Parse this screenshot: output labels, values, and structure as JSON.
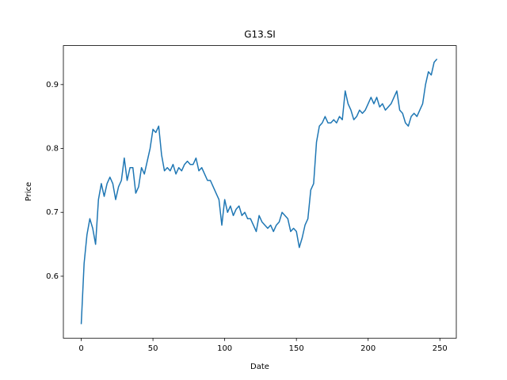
{
  "chart_data": {
    "type": "line",
    "title": "G13.SI",
    "x_label": "Date",
    "y_label": "Price",
    "x": [
      0,
      2,
      4,
      6,
      8,
      10,
      12,
      14,
      16,
      18,
      20,
      22,
      24,
      26,
      28,
      30,
      32,
      34,
      36,
      38,
      40,
      42,
      44,
      46,
      48,
      50,
      52,
      54,
      56,
      58,
      60,
      62,
      64,
      66,
      68,
      70,
      72,
      74,
      76,
      78,
      80,
      82,
      84,
      86,
      88,
      90,
      92,
      94,
      96,
      98,
      100,
      102,
      104,
      106,
      108,
      110,
      112,
      114,
      116,
      118,
      120,
      122,
      124,
      126,
      128,
      130,
      132,
      134,
      136,
      138,
      140,
      142,
      144,
      146,
      148,
      150,
      152,
      154,
      156,
      158,
      160,
      162,
      164,
      166,
      168,
      170,
      172,
      174,
      176,
      178,
      180,
      182,
      184,
      186,
      188,
      190,
      192,
      194,
      196,
      198,
      200,
      202,
      204,
      206,
      208,
      210,
      212,
      214,
      216,
      218,
      220,
      222,
      224,
      226,
      228,
      230,
      232,
      234,
      236,
      238,
      240,
      242,
      244,
      246,
      248
    ],
    "series": [
      {
        "name": "G13.SI",
        "color": "#1f77b4",
        "values": [
          0.525,
          0.62,
          0.665,
          0.69,
          0.675,
          0.65,
          0.72,
          0.745,
          0.725,
          0.745,
          0.755,
          0.745,
          0.72,
          0.74,
          0.75,
          0.785,
          0.75,
          0.77,
          0.77,
          0.73,
          0.74,
          0.77,
          0.76,
          0.78,
          0.8,
          0.83,
          0.825,
          0.835,
          0.79,
          0.765,
          0.77,
          0.765,
          0.775,
          0.76,
          0.77,
          0.765,
          0.775,
          0.78,
          0.775,
          0.775,
          0.785,
          0.765,
          0.77,
          0.76,
          0.75,
          0.75,
          0.74,
          0.73,
          0.72,
          0.68,
          0.72,
          0.7,
          0.71,
          0.695,
          0.705,
          0.71,
          0.695,
          0.7,
          0.69,
          0.69,
          0.68,
          0.67,
          0.695,
          0.685,
          0.68,
          0.675,
          0.68,
          0.67,
          0.68,
          0.685,
          0.7,
          0.695,
          0.69,
          0.67,
          0.675,
          0.67,
          0.645,
          0.66,
          0.68,
          0.69,
          0.735,
          0.745,
          0.81,
          0.835,
          0.84,
          0.85,
          0.84,
          0.84,
          0.845,
          0.84,
          0.85,
          0.845,
          0.89,
          0.87,
          0.86,
          0.845,
          0.85,
          0.86,
          0.855,
          0.86,
          0.87,
          0.88,
          0.87,
          0.88,
          0.865,
          0.87,
          0.86,
          0.865,
          0.87,
          0.88,
          0.89,
          0.86,
          0.855,
          0.84,
          0.835,
          0.85,
          0.855,
          0.85,
          0.86,
          0.87,
          0.9,
          0.92,
          0.915,
          0.935,
          0.94
        ]
      }
    ],
    "xlim": [
      -12.45,
      261.45
    ],
    "ylim": [
      0.503,
      0.961
    ],
    "xticks": [
      0,
      50,
      100,
      150,
      200,
      250
    ],
    "yticks": [
      0.6,
      0.7,
      0.8,
      0.9
    ],
    "grid": false
  }
}
